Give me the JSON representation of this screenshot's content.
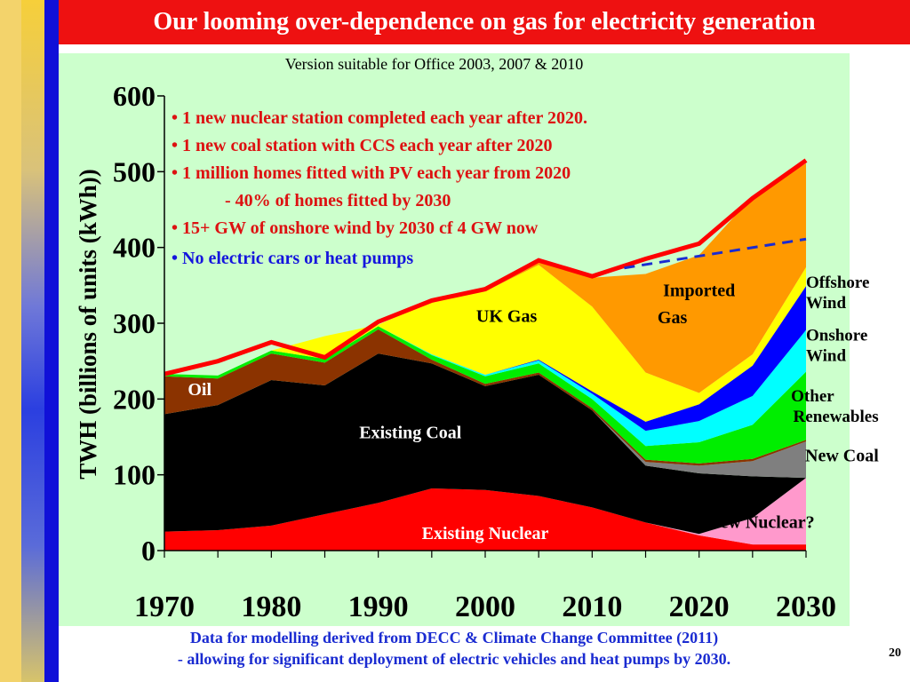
{
  "slide": {
    "title": "Our looming over-dependence on gas for electricity generation",
    "subtitle": "Version suitable for Office 2003, 2007 & 2010",
    "footer_line1": "Data for modelling derived from DECC & Climate Change Committee (2011)",
    "footer_line2": "- allowing for significant deployment of electric vehicles and heat pumps by  2030.",
    "page_number": "20"
  },
  "bullets": {
    "b1": "•  1 new nuclear station completed each year after 2020.",
    "b2": "•  1 new coal station with CCS each  year after 2020",
    "b3": "•  1  million homes fitted with PV each year from 2020",
    "b4": "- 40% of homes fitted by 2030",
    "b5": "•  15+ GW of onshore wind by 2030 cf 4 GW now",
    "b6": "•  No electric cars or heat pumps"
  },
  "chart_data": {
    "type": "area",
    "stacked": true,
    "ylabel": "TWH (billions of units (kWh))",
    "xlabel": "",
    "xlim": [
      1970,
      2030
    ],
    "ylim": [
      0,
      600
    ],
    "xticks": [
      1970,
      1980,
      1990,
      2000,
      2010,
      2020,
      2030
    ],
    "yticks": [
      0,
      100,
      200,
      300,
      400,
      500,
      600
    ],
    "x": [
      1970,
      1975,
      1980,
      1985,
      1990,
      1995,
      2000,
      2005,
      2010,
      2015,
      2020,
      2025,
      2030
    ],
    "series": [
      {
        "name": "Existing Nuclear",
        "color": "#ff0000",
        "values": [
          25,
          27,
          33,
          48,
          63,
          82,
          80,
          72,
          57,
          37,
          20,
          8,
          8
        ]
      },
      {
        "name": "New Nuclear?",
        "color": "#ff99cc",
        "values": [
          0,
          0,
          0,
          0,
          0,
          0,
          0,
          0,
          0,
          0,
          2,
          35,
          88
        ]
      },
      {
        "name": "Existing Coal",
        "color": "#000000",
        "values": [
          155,
          165,
          192,
          170,
          197,
          165,
          137,
          160,
          128,
          75,
          80,
          55,
          0
        ]
      },
      {
        "name": "New Coal",
        "color": "#7f7f7f",
        "values": [
          0,
          0,
          0,
          0,
          0,
          0,
          0,
          0,
          0,
          5,
          10,
          20,
          48
        ]
      },
      {
        "name": "Oil",
        "color": "#8b3300",
        "values": [
          50,
          35,
          35,
          30,
          32,
          5,
          3,
          3,
          3,
          3,
          3,
          3,
          2
        ]
      },
      {
        "name": "Other Renewables",
        "color": "#00ee00",
        "values": [
          3,
          4,
          4,
          5,
          4,
          6,
          10,
          12,
          12,
          18,
          28,
          45,
          90
        ]
      },
      {
        "name": "Onshore Wind",
        "color": "#00ffff",
        "values": [
          0,
          0,
          0,
          0,
          0,
          1,
          2,
          4,
          7,
          20,
          28,
          38,
          55
        ]
      },
      {
        "name": "Offshore Wind",
        "color": "#0000ff",
        "values": [
          0,
          0,
          0,
          0,
          0,
          0,
          0,
          1,
          3,
          12,
          22,
          40,
          58
        ]
      },
      {
        "name": "UK Gas",
        "color": "#ffff00",
        "values": [
          0,
          0,
          0,
          30,
          2,
          70,
          110,
          125,
          112,
          65,
          15,
          15,
          25
        ]
      },
      {
        "name": "Imported Gas",
        "color": "#ff9900",
        "values": [
          0,
          0,
          0,
          0,
          0,
          0,
          0,
          5,
          38,
          130,
          182,
          208,
          137
        ]
      }
    ],
    "total_line": {
      "color": "#ff0000",
      "values": [
        233,
        250,
        275,
        255,
        302,
        330,
        345,
        383,
        362,
        385,
        405,
        465,
        515
      ]
    },
    "projection_line": {
      "color": "#1a2bd1",
      "style": "dashed",
      "x": [
        2013,
        2030
      ],
      "values": [
        373,
        411
      ]
    },
    "labels": {
      "existing_nuclear": "Existing Nuclear",
      "new_nuclear": "New Nuclear?",
      "existing_coal": "Existing Coal",
      "new_coal": "New Coal",
      "oil": "Oil",
      "other_renewables_1": "Other",
      "other_renewables_2": "Renewables",
      "onshore_1": "Onshore",
      "onshore_2": "Wind",
      "offshore_1": "Offshore",
      "offshore_2": "Wind",
      "uk_gas": "UK Gas",
      "imported_gas_1": "Imported",
      "imported_gas_2": "Gas"
    }
  }
}
